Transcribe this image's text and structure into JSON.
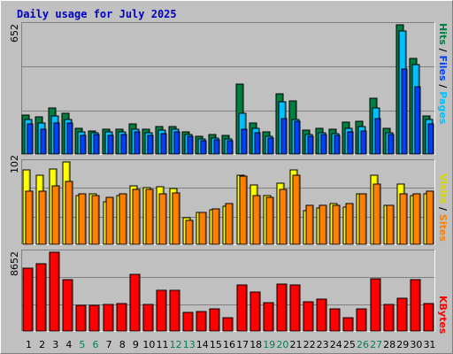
{
  "chart_data": [
    {
      "type": "bar",
      "title": "Daily usage for July 2025",
      "categories": [
        "1",
        "2",
        "3",
        "4",
        "5",
        "6",
        "7",
        "8",
        "9",
        "10",
        "11",
        "12",
        "13",
        "14",
        "15",
        "16",
        "17",
        "18",
        "19",
        "20",
        "21",
        "22",
        "23",
        "24",
        "25",
        "26",
        "27",
        "28",
        "29",
        "30",
        "31"
      ],
      "weekend_days": [
        "5",
        "6",
        "12",
        "13",
        "19",
        "20",
        "26",
        "27"
      ],
      "ymax_label": "652",
      "ylim": [
        0,
        652
      ],
      "right_label": [
        "Hits",
        "Files",
        "Pages"
      ],
      "series": [
        {
          "name": "Hits",
          "color": "#008040",
          "values": [
            195,
            188,
            232,
            205,
            130,
            117,
            125,
            124,
            150,
            126,
            138,
            138,
            112,
            90,
            98,
            96,
            355,
            158,
            112,
            305,
            270,
            122,
            130,
            127,
            160,
            163,
            282,
            128,
            652,
            482,
            190
          ]
        },
        {
          "name": "Files",
          "color": "#00C0FF",
          "values": [
            175,
            157,
            192,
            175,
            110,
            106,
            110,
            112,
            127,
            107,
            120,
            125,
            100,
            75,
            80,
            75,
            205,
            130,
            90,
            265,
            175,
            100,
            107,
            102,
            130,
            137,
            230,
            106,
            622,
            449,
            175
          ]
        },
        {
          "name": "Pages",
          "color": "#0040FF",
          "values": [
            150,
            125,
            158,
            155,
            92,
            97,
            95,
            98,
            110,
            95,
            103,
            110,
            88,
            68,
            73,
            66,
            125,
            108,
            82,
            180,
            163,
            88,
            97,
            93,
            110,
            118,
            180,
            97,
            430,
            340,
            150
          ]
        }
      ]
    },
    {
      "type": "bar",
      "ymax_label": "102",
      "ylim": [
        0,
        102
      ],
      "right_label": [
        "Visits",
        "Sites"
      ],
      "series": [
        {
          "name": "Visits",
          "color": "#FFFF00",
          "values": [
            92,
            86,
            93,
            102,
            60,
            62,
            53,
            60,
            72,
            70,
            71,
            69,
            33,
            39,
            43,
            47,
            85,
            73,
            60,
            76,
            92,
            42,
            45,
            50,
            46,
            63,
            85,
            48,
            75,
            60,
            63
          ]
        },
        {
          "name": "Sites",
          "color": "#FF8000",
          "values": [
            66,
            66,
            72,
            78,
            62,
            60,
            58,
            62,
            68,
            68,
            62,
            64,
            30,
            40,
            44,
            50,
            84,
            60,
            58,
            68,
            86,
            48,
            48,
            48,
            50,
            63,
            75,
            48,
            62,
            62,
            66
          ]
        }
      ]
    },
    {
      "type": "bar",
      "ymax_label": "8652",
      "ylim": [
        0,
        8652
      ],
      "right_label": [
        "KBytes"
      ],
      "series": [
        {
          "name": "KBytes",
          "color": "#FF0000",
          "values": [
            6950,
            7400,
            8652,
            5600,
            2800,
            2850,
            2950,
            3050,
            6200,
            2950,
            4450,
            4450,
            2000,
            2150,
            2450,
            1500,
            5050,
            4250,
            3100,
            5150,
            5050,
            3200,
            3500,
            2400,
            1500,
            2400,
            5700,
            2900,
            3600,
            5600,
            3050
          ]
        }
      ]
    }
  ]
}
